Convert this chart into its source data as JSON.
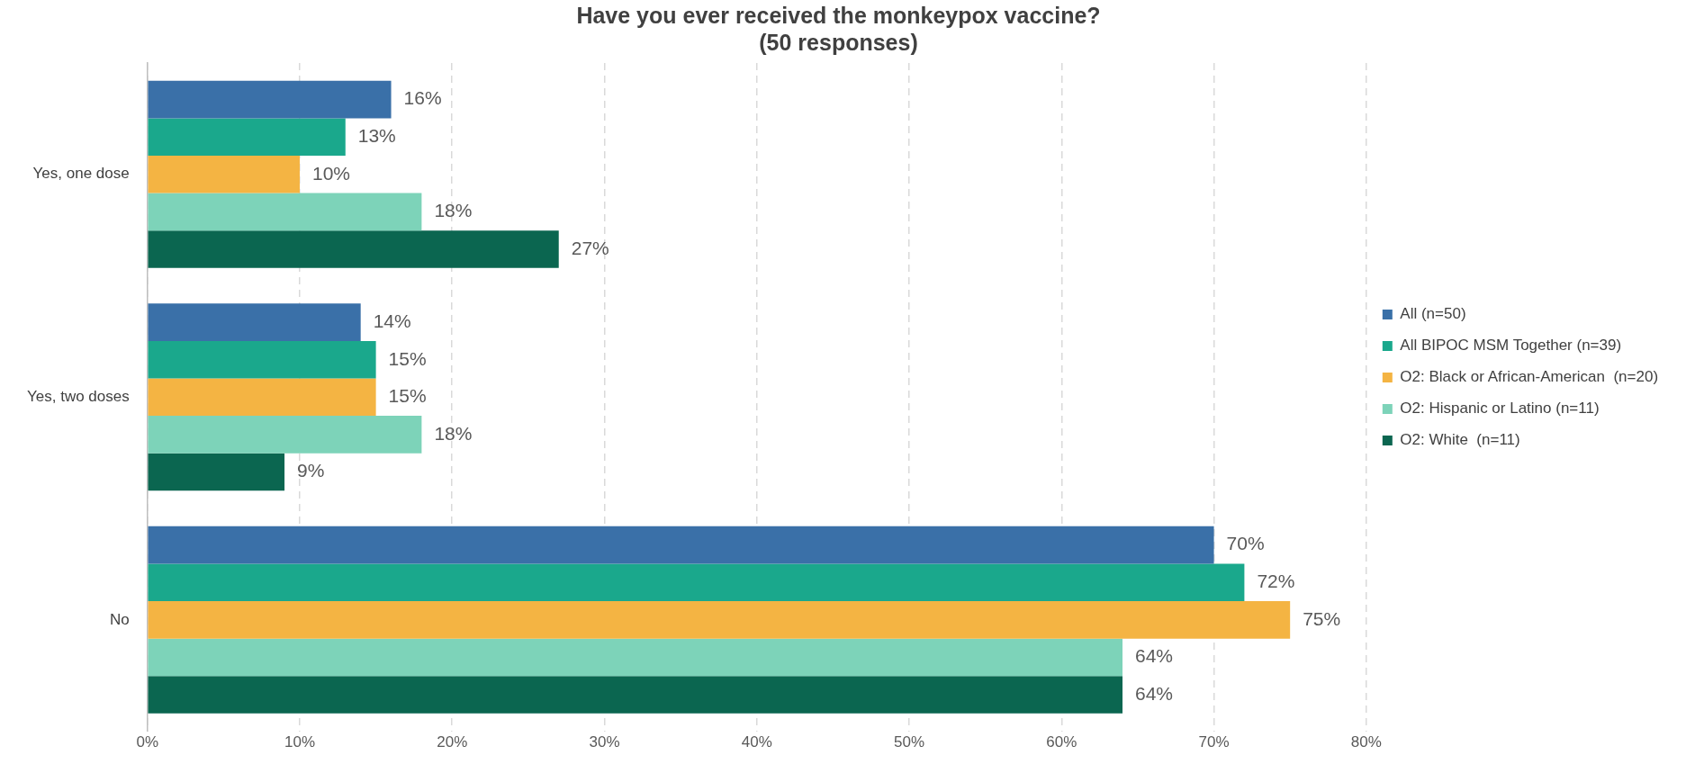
{
  "chart_data": {
    "type": "bar",
    "orientation": "horizontal",
    "title": "Have you ever received the monkeypox vaccine?\n(50 responses)",
    "categories": [
      "Yes, one dose",
      "Yes, two doses",
      "No"
    ],
    "series": [
      {
        "name": "All (n=50)",
        "color": "#3a70a8",
        "values": [
          16,
          14,
          70
        ],
        "value_labels": [
          "16%",
          "14%",
          "70%"
        ]
      },
      {
        "name": "All BIPOC MSM Together (n=39)",
        "color": "#1aa88c",
        "values": [
          13,
          15,
          72
        ],
        "value_labels": [
          "13%",
          "15%",
          "72%"
        ]
      },
      {
        "name": "O2: Black or African-American  (n=20)",
        "color": "#f4b443",
        "values": [
          10,
          15,
          75
        ],
        "value_labels": [
          "10%",
          "15%",
          "75%"
        ]
      },
      {
        "name": "O2: Hispanic or Latino (n=11)",
        "color": "#7dd3b9",
        "values": [
          18,
          18,
          64
        ],
        "value_labels": [
          "18%",
          "18%",
          "64%"
        ]
      },
      {
        "name": "O2: White  (n=11)",
        "color": "#0b6650",
        "values": [
          27,
          9,
          64
        ],
        "value_labels": [
          "27%",
          "9%",
          "64%"
        ]
      }
    ],
    "xlim": [
      0,
      80
    ],
    "xticks": [
      {
        "value": 0,
        "label": "0%"
      },
      {
        "value": 10,
        "label": "10%"
      },
      {
        "value": 20,
        "label": "20%"
      },
      {
        "value": 30,
        "label": "30%"
      },
      {
        "value": 40,
        "label": "40%"
      },
      {
        "value": 50,
        "label": "50%"
      },
      {
        "value": 60,
        "label": "60%"
      },
      {
        "value": 70,
        "label": "70%"
      },
      {
        "value": 80,
        "label": "80%"
      }
    ],
    "grid": "x",
    "legend": "right"
  }
}
